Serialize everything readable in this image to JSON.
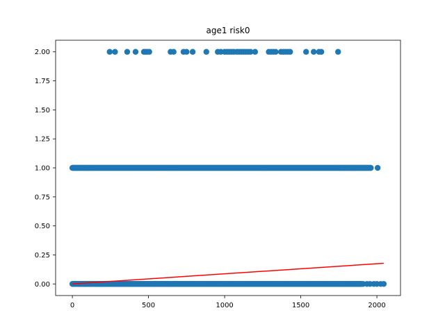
{
  "chart_data": {
    "type": "scatter",
    "title": "age1 risk0",
    "xlabel": "",
    "ylabel": "",
    "xlim": [
      -110,
      2155
    ],
    "ylim": [
      -0.1,
      2.1
    ],
    "x_ticks": [
      0,
      500,
      1000,
      1500,
      2000
    ],
    "x_tick_labels": [
      "0",
      "500",
      "1000",
      "1500",
      "2000"
    ],
    "y_ticks": [
      0.0,
      0.25,
      0.5,
      0.75,
      1.0,
      1.25,
      1.5,
      1.75,
      2.0
    ],
    "y_tick_labels": [
      "0.00",
      "0.25",
      "0.50",
      "0.75",
      "1.00",
      "1.25",
      "1.50",
      "1.75",
      "2.00"
    ],
    "grid": false,
    "colors": {
      "points": "#1f77b4",
      "fit_line": "#ff0000",
      "frame": "#000000"
    },
    "series": [
      {
        "marker": "circle",
        "points_y2": [
          [
            245,
            2
          ],
          [
            280,
            2
          ],
          [
            360,
            2
          ],
          [
            415,
            2
          ],
          [
            470,
            2
          ],
          [
            480,
            2
          ],
          [
            490,
            2
          ],
          [
            505,
            2
          ],
          [
            645,
            2
          ],
          [
            665,
            2
          ],
          [
            730,
            2
          ],
          [
            750,
            2
          ],
          [
            790,
            2
          ],
          [
            880,
            2
          ],
          [
            955,
            2
          ],
          [
            975,
            2
          ],
          [
            1000,
            2
          ],
          [
            1015,
            2
          ],
          [
            1030,
            2
          ],
          [
            1045,
            2
          ],
          [
            1060,
            2
          ],
          [
            1080,
            2
          ],
          [
            1095,
            2
          ],
          [
            1110,
            2
          ],
          [
            1125,
            2
          ],
          [
            1140,
            2
          ],
          [
            1155,
            2
          ],
          [
            1170,
            2
          ],
          [
            1200,
            2
          ],
          [
            1290,
            2
          ],
          [
            1305,
            2
          ],
          [
            1320,
            2
          ],
          [
            1335,
            2
          ],
          [
            1370,
            2
          ],
          [
            1385,
            2
          ],
          [
            1400,
            2
          ],
          [
            1415,
            2
          ],
          [
            1430,
            2
          ],
          [
            1535,
            2
          ],
          [
            1585,
            2
          ],
          [
            1620,
            2
          ],
          [
            1635,
            2
          ],
          [
            1745,
            2
          ]
        ],
        "band_y1": {
          "x_min": 0,
          "x_max": 1960,
          "y": 1
        },
        "sparse_y1": [
          [
            1760,
            1
          ],
          [
            1785,
            1
          ],
          [
            1800,
            1
          ],
          [
            1830,
            1
          ],
          [
            1855,
            1
          ],
          [
            1880,
            1
          ],
          [
            1910,
            1
          ],
          [
            1960,
            1
          ],
          [
            2005,
            1
          ]
        ],
        "band_y0": {
          "x_min": 0,
          "x_max": 1900,
          "y": 0
        },
        "sparse_y0": [
          [
            1910,
            0
          ],
          [
            1935,
            0
          ],
          [
            1955,
            0
          ],
          [
            1980,
            0
          ],
          [
            2000,
            0
          ],
          [
            2025,
            0
          ],
          [
            2045,
            0
          ]
        ]
      }
    ],
    "fit_line": {
      "x": [
        0,
        2045
      ],
      "y": [
        0.0,
        0.178
      ]
    }
  }
}
